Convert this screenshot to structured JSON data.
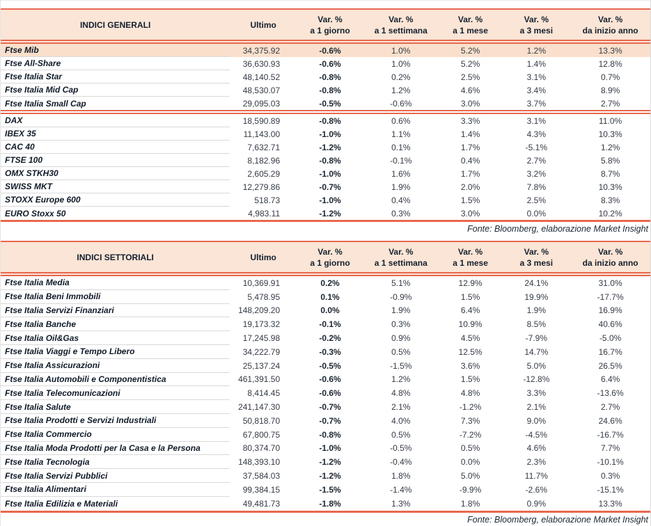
{
  "columns": {
    "ultimo": "Ultimo",
    "var_label": "Var. %",
    "sub_d1": "a 1 giorno",
    "sub_w1": "a 1 settimana",
    "sub_m1": "a 1 mese",
    "sub_m3": "a 3 mesi",
    "sub_ytd": "da inizio anno"
  },
  "accent_colors": {
    "rule_red": "#e8684e",
    "header_peach": "#fbe5d6",
    "highlight_row_peach": "#fae0cc"
  },
  "tables": [
    {
      "title": "INDICI GENERALI",
      "source": "Fonte: Bloomberg, elaborazione Market Insight",
      "groups": [
        {
          "rows": [
            {
              "name": "Ftse Mib",
              "ultimo": "34,375.92",
              "d1": "-0.6%",
              "w1": "1.0%",
              "m1": "5.2%",
              "m3": "1.2%",
              "ytd": "13.3%",
              "highlight": true
            },
            {
              "name": "Ftse All-Share",
              "ultimo": "36,630.93",
              "d1": "-0.6%",
              "w1": "1.0%",
              "m1": "5.2%",
              "m3": "1.4%",
              "ytd": "12.8%"
            },
            {
              "name": "Ftse Italia Star",
              "ultimo": "48,140.52",
              "d1": "-0.8%",
              "w1": "0.2%",
              "m1": "2.5%",
              "m3": "3.1%",
              "ytd": "0.7%"
            },
            {
              "name": "Ftse Italia Mid Cap",
              "ultimo": "48,530.07",
              "d1": "-0.8%",
              "w1": "1.2%",
              "m1": "4.6%",
              "m3": "3.4%",
              "ytd": "8.9%"
            },
            {
              "name": "Ftse Italia Small Cap",
              "ultimo": "29,095.03",
              "d1": "-0.5%",
              "w1": "-0.6%",
              "m1": "3.0%",
              "m3": "3.7%",
              "ytd": "2.7%"
            }
          ]
        },
        {
          "rows": [
            {
              "name": "DAX",
              "ultimo": "18,590.89",
              "d1": "-0.8%",
              "w1": "0.6%",
              "m1": "3.3%",
              "m3": "3.1%",
              "ytd": "11.0%"
            },
            {
              "name": "IBEX 35",
              "ultimo": "11,143.00",
              "d1": "-1.0%",
              "w1": "1.1%",
              "m1": "1.4%",
              "m3": "4.3%",
              "ytd": "10.3%"
            },
            {
              "name": "CAC 40",
              "ultimo": "7,632.71",
              "d1": "-1.2%",
              "w1": "0.1%",
              "m1": "1.7%",
              "m3": "-5.1%",
              "ytd": "1.2%"
            },
            {
              "name": "FTSE 100",
              "ultimo": "8,182.96",
              "d1": "-0.8%",
              "w1": "-0.1%",
              "m1": "0.4%",
              "m3": "2.7%",
              "ytd": "5.8%"
            },
            {
              "name": "OMX STKH30",
              "ultimo": "2,605.29",
              "d1": "-1.0%",
              "w1": "1.6%",
              "m1": "1.7%",
              "m3": "3.2%",
              "ytd": "8.7%"
            },
            {
              "name": "SWISS MKT",
              "ultimo": "12,279.86",
              "d1": "-0.7%",
              "w1": "1.9%",
              "m1": "2.0%",
              "m3": "7.8%",
              "ytd": "10.3%"
            },
            {
              "name": "STOXX Europe 600",
              "ultimo": "518.73",
              "d1": "-1.0%",
              "w1": "0.4%",
              "m1": "1.5%",
              "m3": "2.5%",
              "ytd": "8.3%"
            },
            {
              "name": "EURO Stoxx 50",
              "ultimo": "4,983.11",
              "d1": "-1.2%",
              "w1": "0.3%",
              "m1": "3.0%",
              "m3": "0.0%",
              "ytd": "10.2%"
            }
          ]
        }
      ]
    },
    {
      "title": "INDICI SETTORIALI",
      "source": "Fonte: Bloomberg, elaborazione Market Insight",
      "groups": [
        {
          "rows": [
            {
              "name": "Ftse Italia Media",
              "ultimo": "10,369.91",
              "d1": "0.2%",
              "w1": "5.1%",
              "m1": "12.9%",
              "m3": "24.1%",
              "ytd": "31.0%"
            },
            {
              "name": "Ftse Italia Beni Immobili",
              "ultimo": "5,478.95",
              "d1": "0.1%",
              "w1": "-0.9%",
              "m1": "1.5%",
              "m3": "19.9%",
              "ytd": "-17.7%"
            },
            {
              "name": "Ftse Italia Servizi Finanziari",
              "ultimo": "148,209.20",
              "d1": "0.0%",
              "w1": "1.9%",
              "m1": "6.4%",
              "m3": "1.9%",
              "ytd": "16.9%"
            },
            {
              "name": "Ftse Italia Banche",
              "ultimo": "19,173.32",
              "d1": "-0.1%",
              "w1": "0.3%",
              "m1": "10.9%",
              "m3": "8.5%",
              "ytd": "40.6%"
            },
            {
              "name": "Ftse Italia Oil&Gas",
              "ultimo": "17,245.98",
              "d1": "-0.2%",
              "w1": "0.9%",
              "m1": "4.5%",
              "m3": "-7.9%",
              "ytd": "-5.0%"
            },
            {
              "name": "Ftse Italia Viaggi e Tempo Libero",
              "ultimo": "34,222.79",
              "d1": "-0.3%",
              "w1": "0.5%",
              "m1": "12.5%",
              "m3": "14.7%",
              "ytd": "16.7%"
            },
            {
              "name": "Ftse Italia Assicurazioni",
              "ultimo": "25,137.24",
              "d1": "-0.5%",
              "w1": "-1.5%",
              "m1": "3.6%",
              "m3": "5.0%",
              "ytd": "26.5%"
            },
            {
              "name": "Ftse Italia Automobili e Componentistica",
              "ultimo": "461,391.50",
              "d1": "-0.6%",
              "w1": "1.2%",
              "m1": "1.5%",
              "m3": "-12.8%",
              "ytd": "6.4%"
            },
            {
              "name": "Ftse Italia Telecomunicazioni",
              "ultimo": "8,414.45",
              "d1": "-0.6%",
              "w1": "4.8%",
              "m1": "4.8%",
              "m3": "3.3%",
              "ytd": "-13.6%"
            },
            {
              "name": "Ftse Italia Salute",
              "ultimo": "241,147.30",
              "d1": "-0.7%",
              "w1": "2.1%",
              "m1": "-1.2%",
              "m3": "2.1%",
              "ytd": "2.7%"
            },
            {
              "name": "Ftse Italia Prodotti e Servizi Industriali",
              "ultimo": "50,818.70",
              "d1": "-0.7%",
              "w1": "4.0%",
              "m1": "7.3%",
              "m3": "9.0%",
              "ytd": "24.6%"
            },
            {
              "name": "Ftse Italia Commercio",
              "ultimo": "67,800.75",
              "d1": "-0.8%",
              "w1": "0.5%",
              "m1": "-7.2%",
              "m3": "-4.5%",
              "ytd": "-16.7%"
            },
            {
              "name": "Ftse Italia Moda Prodotti per la Casa e la Persona",
              "ultimo": "80,374.70",
              "d1": "-1.0%",
              "w1": "-0.5%",
              "m1": "0.5%",
              "m3": "4.6%",
              "ytd": "7.7%"
            },
            {
              "name": "Ftse Italia Tecnologia",
              "ultimo": "148,393.10",
              "d1": "-1.2%",
              "w1": "-0.4%",
              "m1": "0.0%",
              "m3": "2.3%",
              "ytd": "-10.1%"
            },
            {
              "name": "Ftse Italia Servizi Pubblici",
              "ultimo": "37,584.03",
              "d1": "-1.2%",
              "w1": "1.8%",
              "m1": "5.0%",
              "m3": "11.7%",
              "ytd": "0.3%"
            },
            {
              "name": "Ftse Italia Alimentari",
              "ultimo": "99,384.15",
              "d1": "-1.5%",
              "w1": "-1.4%",
              "m1": "-9.9%",
              "m3": "-2.6%",
              "ytd": "-15.1%"
            },
            {
              "name": "Ftse Italia Edilizia e Materiali",
              "ultimo": "49,481.73",
              "d1": "-1.8%",
              "w1": "1.3%",
              "m1": "1.8%",
              "m3": "0.9%",
              "ytd": "13.3%"
            }
          ]
        }
      ]
    }
  ]
}
